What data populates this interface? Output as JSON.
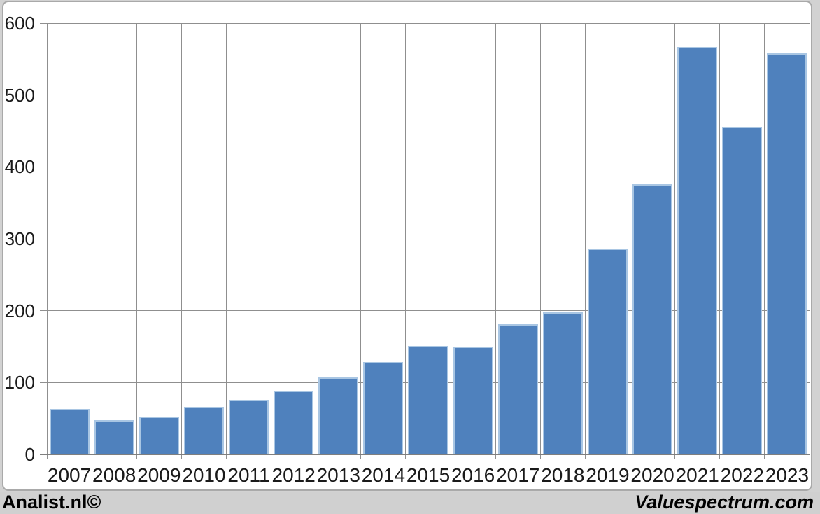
{
  "chart_data": {
    "type": "bar",
    "title": "",
    "xlabel": "",
    "ylabel": "",
    "categories": [
      "2007",
      "2008",
      "2009",
      "2010",
      "2011",
      "2012",
      "2013",
      "2014",
      "2015",
      "2016",
      "2017",
      "2018",
      "2019",
      "2020",
      "2021",
      "2022",
      "2023"
    ],
    "values": [
      63,
      48,
      53,
      66,
      76,
      89,
      107,
      129,
      151,
      150,
      181,
      198,
      286,
      376,
      567,
      456,
      558
    ],
    "ylim": [
      0,
      600
    ],
    "yticks": [
      0,
      100,
      200,
      300,
      400,
      500,
      600
    ],
    "grid": true,
    "legend": "none",
    "colors": {
      "bar_fill": "#4f81bd",
      "bar_border": "#a9c6e3",
      "gridline": "#8f8f8f",
      "axis": "#7f7f7f",
      "tick_text": "#1a1a1a",
      "frame_border": "#a9a9a9",
      "frame_background": "#d2d2d2",
      "plot_background": "#ffffff"
    }
  },
  "footer": {
    "left": "Analist.nl©",
    "right": "Valuespectrum.com"
  }
}
